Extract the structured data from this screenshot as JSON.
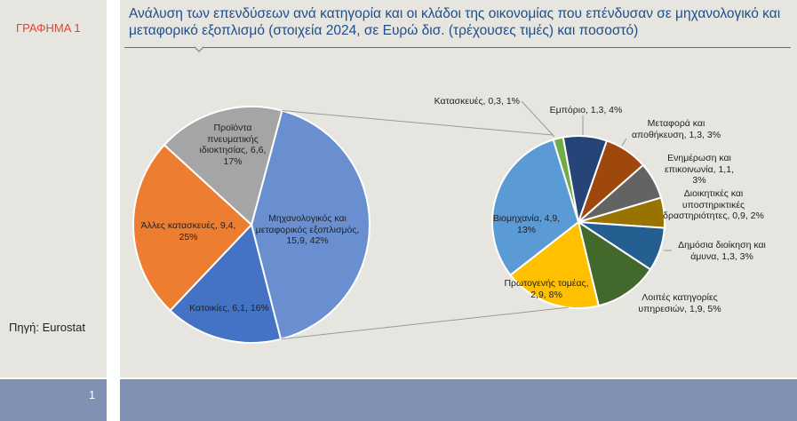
{
  "header": {
    "graph_label": "ΓΡΑΦΗΜΑ 1",
    "title": "Ανάλυση των επενδύσεων ανά κατηγορία και οι κλάδοι της οικονομίας που επένδυσαν σε μηχανολογικό και μεταφορικό εξοπλισμό (στοιχεία 2024, σε Ευρώ δισ. (τρέχουσες τιμές) και ποσοστό)"
  },
  "source": "Πηγή: Eurostat",
  "page_number": "1",
  "chart_data": [
    {
      "type": "pie",
      "title": "Επενδύσεις ανά κατηγορία",
      "unit": "δισ. ευρώ",
      "slices": [
        {
          "name": "Μηχανολογικός και μεταφορικός εξοπλισμός",
          "value": 15.9,
          "percent": 42,
          "label": "Μηχανολογικός και μεταφορικός εξοπλισμός, 15,9, 42%",
          "color": "#6a8fd0"
        },
        {
          "name": "Κατοικίες",
          "value": 6.1,
          "percent": 16,
          "label": "Κατοικίες, 6,1, 16%",
          "color": "#4472c4"
        },
        {
          "name": "Άλλες κατασκευές",
          "value": 9.4,
          "percent": 25,
          "label": "Άλλες κατασκευές, 9,4, 25%",
          "color": "#ed7d31"
        },
        {
          "name": "Προϊόντα πνευματικής ιδιοκτησίας",
          "value": 6.6,
          "percent": 17,
          "label": "Προϊόντα πνευματικής ιδιοκτησίας, 6,6, 17%",
          "color": "#a5a5a5"
        }
      ]
    },
    {
      "type": "pie",
      "title": "Κλάδοι που επένδυσαν σε μηχανολογικό και μεταφορικό εξοπλισμό",
      "unit": "δισ. ευρώ",
      "slices": [
        {
          "name": "Κατασκευές",
          "value": 0.3,
          "percent": 1,
          "label": "Κατασκευές, 0,3, 1%",
          "color": "#70ad47"
        },
        {
          "name": "Εμπόριο",
          "value": 1.3,
          "percent": 4,
          "label": "Εμπόριο, 1,3, 4%",
          "color": "#264478"
        },
        {
          "name": "Μεταφορά και αποθήκευση",
          "value": 1.3,
          "percent": 3,
          "label": "Μεταφορά και αποθήκευση, 1,3, 3%",
          "color": "#9e480e"
        },
        {
          "name": "Ενημέρωση και επικοινωνία",
          "value": 1.1,
          "percent": 3,
          "label": "Ενημέρωση και επικοινωνία, 1,1, 3%",
          "color": "#636363"
        },
        {
          "name": "Διοικητικές και υποστηρικτικές δραστηριότητες",
          "value": 0.9,
          "percent": 2,
          "label": "Διοικητικές και υποστηρικτικές δραστηριότητες, 0,9, 2%",
          "color": "#997300"
        },
        {
          "name": "Δημόσια διοίκηση και άμυνα",
          "value": 1.3,
          "percent": 3,
          "label": "Δημόσια διοίκηση και άμυνα, 1,3, 3%",
          "color": "#255e91"
        },
        {
          "name": "Λοιπές κατηγορίες υπηρεσιών",
          "value": 1.9,
          "percent": 5,
          "label": "Λοιπές κατηγορίες υπηρεσιών, 1,9, 5%",
          "color": "#43682b"
        },
        {
          "name": "Πρωτογενής τομέας",
          "value": 2.9,
          "percent": 8,
          "label": "Πρωτογενής τομέας, 2,9, 8%",
          "color": "#ffc000"
        },
        {
          "name": "Βιομηχανία",
          "value": 4.9,
          "percent": 13,
          "label": "Βιομηχανία, 4,9, 13%",
          "color": "#5b9bd5"
        }
      ]
    }
  ]
}
